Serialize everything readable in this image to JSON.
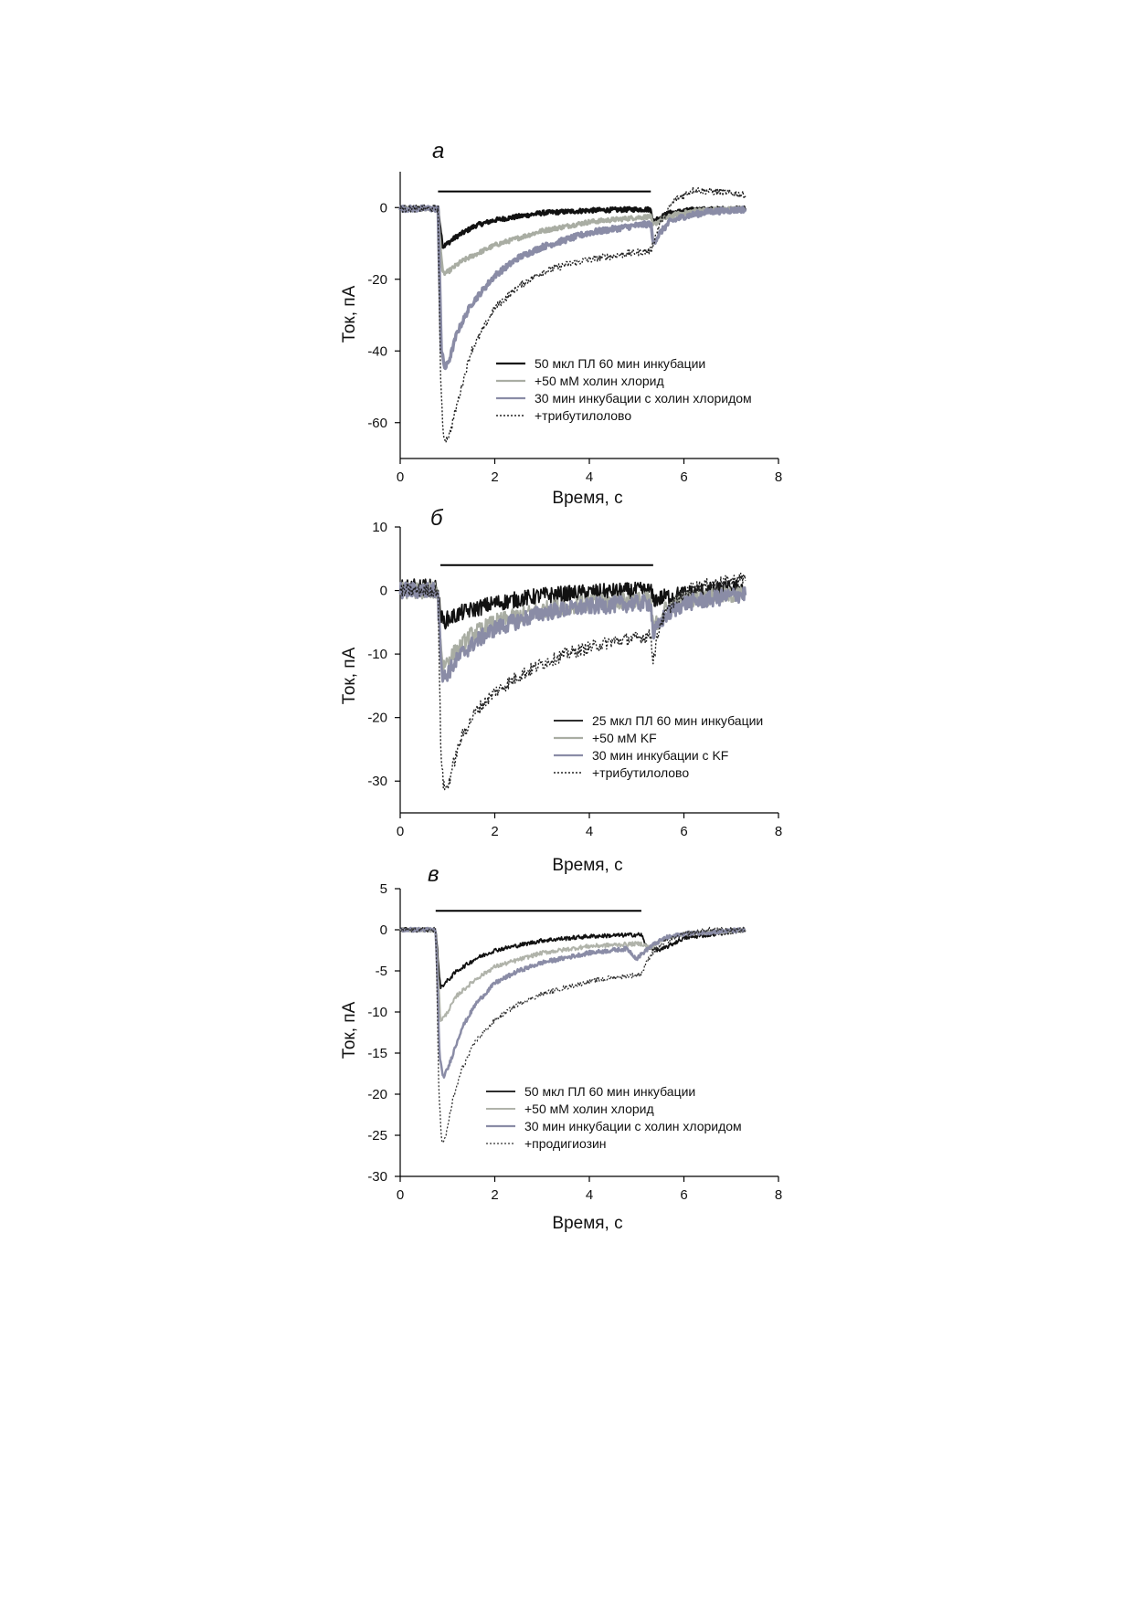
{
  "figure": {
    "panels": [
      {
        "label": "а",
        "xlabel": "Время, с",
        "ylabel": "Ток, пА"
      },
      {
        "label": "б",
        "xlabel": "Время, с",
        "ylabel": "Ток, пА"
      },
      {
        "label": "в",
        "xlabel": "Время, с",
        "ylabel": "Ток, пА"
      }
    ]
  },
  "chart_data": [
    {
      "type": "line",
      "panel": "а",
      "xlabel": "Время, с",
      "ylabel": "Ток, пА",
      "xlim": [
        0,
        8
      ],
      "ylim": [
        -70,
        10
      ],
      "xticks": [
        0,
        2,
        4,
        6,
        8
      ],
      "yticks": [
        0,
        -20,
        -40,
        -60
      ],
      "stimulus_bar": {
        "x": [
          0.8,
          5.3
        ],
        "y": 4.5
      },
      "legend_position": "lower-right",
      "series": [
        {
          "name": "50 мкл ПЛ 60 мин инкубации",
          "color": "#111111",
          "style": "solid",
          "stroke": 3.0,
          "noise": 0.6,
          "x": [
            0,
            0.8,
            0.82,
            0.9,
            1.0,
            1.2,
            1.6,
            2.0,
            3.0,
            4.0,
            5.0,
            5.3,
            5.34,
            5.45,
            5.7,
            6.2,
            7.3
          ],
          "y": [
            -0.3,
            -0.3,
            -3,
            -11,
            -10,
            -8,
            -5,
            -3.5,
            -1.5,
            -0.8,
            -0.5,
            -0.5,
            -4,
            -3,
            -1.5,
            -0.6,
            -0.3
          ]
        },
        {
          "name": "+50 мМ холин хлорид",
          "color": "#a9ada3",
          "style": "solid",
          "stroke": 3.0,
          "noise": 0.6,
          "x": [
            0,
            0.8,
            0.82,
            0.9,
            1.0,
            1.3,
            1.6,
            2.0,
            3.0,
            4.0,
            5.0,
            5.3,
            5.34,
            5.5,
            5.8,
            6.3,
            7.3
          ],
          "y": [
            -0.3,
            -0.3,
            -6,
            -18.5,
            -18,
            -15,
            -13,
            -10.5,
            -6.5,
            -4,
            -2.8,
            -2.5,
            -5,
            -3.5,
            -2,
            -0.8,
            -0.3
          ]
        },
        {
          "name": "30 мин инкубации с холин хлоридом",
          "color": "#8a8ca6",
          "style": "solid",
          "stroke": 3.5,
          "noise": 0.8,
          "x": [
            0,
            0.8,
            0.82,
            0.87,
            0.95,
            1.05,
            1.2,
            1.5,
            2.0,
            2.5,
            3.0,
            4.0,
            5.0,
            5.3,
            5.35,
            5.5,
            5.7,
            6.0,
            6.5,
            7.3
          ],
          "y": [
            -0.3,
            -0.3,
            -12,
            -40,
            -45,
            -42,
            -35,
            -27,
            -19,
            -14,
            -11,
            -7,
            -5,
            -4.5,
            -10,
            -7,
            -4,
            -2.5,
            -1.2,
            -0.5
          ]
        },
        {
          "name": "+трибутилолово",
          "color": "#222222",
          "style": "dotted",
          "stroke": 1.4,
          "noise": 1.0,
          "x": [
            0,
            0.8,
            0.82,
            0.85,
            0.9,
            0.95,
            1.05,
            1.2,
            1.5,
            2.0,
            2.5,
            3.0,
            3.5,
            4.0,
            4.5,
            5.0,
            5.3,
            5.35,
            5.5,
            5.8,
            6.2,
            6.6,
            7.0,
            7.3
          ],
          "y": [
            -0.3,
            -0.3,
            -20,
            -45,
            -62,
            -65,
            -63,
            -55,
            -40,
            -28,
            -22,
            -18,
            -16,
            -14.5,
            -13.5,
            -12.5,
            -12,
            -10,
            -4,
            2,
            5,
            4.5,
            4,
            3.5
          ]
        }
      ]
    },
    {
      "type": "line",
      "panel": "б",
      "xlabel": "Время, с",
      "ylabel": "Ток, пА",
      "xlim": [
        0,
        8
      ],
      "ylim": [
        -35,
        10
      ],
      "xticks": [
        0,
        2,
        4,
        6,
        8
      ],
      "yticks": [
        10,
        0,
        -10,
        -20,
        -30
      ],
      "stimulus_bar": {
        "x": [
          0.85,
          5.35
        ],
        "y": 4
      },
      "legend_position": "lower-right",
      "series": [
        {
          "name": "25 мкл ПЛ 60 мин инкубации",
          "color": "#111111",
          "style": "solid",
          "stroke": 1.8,
          "noise": 1.3,
          "x": [
            0,
            0.8,
            0.82,
            0.9,
            1.0,
            1.3,
            2.0,
            3.0,
            4.0,
            5.0,
            5.3,
            5.35,
            5.6,
            6.0,
            6.5,
            7.3
          ],
          "y": [
            0.5,
            0.5,
            -2,
            -5,
            -4.5,
            -3.5,
            -2,
            -0.8,
            -0.3,
            0,
            0,
            -1.5,
            -1,
            -0.5,
            0,
            0.5
          ]
        },
        {
          "name": "+50 мМ KF",
          "color": "#a9ada3",
          "style": "solid",
          "stroke": 2.2,
          "noise": 1.3,
          "x": [
            0,
            0.8,
            0.82,
            0.9,
            1.0,
            1.5,
            2.0,
            3.0,
            4.0,
            5.0,
            5.3,
            5.35,
            5.6,
            6.0,
            7.3
          ],
          "y": [
            0,
            0,
            -4,
            -12,
            -11,
            -7,
            -5,
            -3,
            -2,
            -1.5,
            -1.5,
            -6,
            -3,
            -1.5,
            -0.5
          ]
        },
        {
          "name": "30 мин инкубации с KF",
          "color": "#8a8ca6",
          "style": "solid",
          "stroke": 2.8,
          "noise": 1.3,
          "x": [
            0,
            0.8,
            0.82,
            0.9,
            1.0,
            1.3,
            1.6,
            2.0,
            3.0,
            4.0,
            5.0,
            5.3,
            5.35,
            5.6,
            6.0,
            7.3
          ],
          "y": [
            0,
            0,
            -5,
            -14,
            -13,
            -10,
            -8,
            -6,
            -3.5,
            -2.5,
            -2,
            -2,
            -7,
            -4,
            -2,
            -0.5
          ]
        },
        {
          "name": "+трибутилолово",
          "color": "#222222",
          "style": "dotted",
          "stroke": 1.4,
          "noise": 1.0,
          "x": [
            0,
            0.8,
            0.82,
            0.86,
            0.92,
            1.0,
            1.1,
            1.3,
            1.6,
            2.0,
            2.5,
            3.0,
            3.5,
            4.0,
            4.5,
            5.0,
            5.3,
            5.35,
            5.5,
            5.8,
            6.2,
            7.0,
            7.3
          ],
          "y": [
            0,
            0,
            -10,
            -25,
            -31,
            -31,
            -28,
            -23,
            -19,
            -16,
            -13.5,
            -11.5,
            -10,
            -9,
            -8,
            -7.5,
            -7,
            -11,
            -5,
            -1.5,
            0.5,
            1.5,
            2
          ]
        }
      ]
    },
    {
      "type": "line",
      "panel": "в",
      "xlabel": "Время, с",
      "ylabel": "Ток, пА",
      "xlim": [
        0,
        8
      ],
      "ylim": [
        -30,
        5
      ],
      "xticks": [
        0,
        2,
        4,
        6,
        8
      ],
      "yticks": [
        5,
        0,
        -5,
        -10,
        -15,
        -20,
        -25,
        -30
      ],
      "stimulus_bar": {
        "x": [
          0.75,
          5.1
        ],
        "y": 2.3
      },
      "legend_position": "lower-right",
      "series": [
        {
          "name": "50 мкл ПЛ 60 мин инкубации",
          "color": "#111111",
          "style": "solid",
          "stroke": 1.8,
          "noise": 0.25,
          "x": [
            0,
            0.75,
            0.78,
            0.85,
            0.95,
            1.2,
            1.6,
            2.0,
            3.0,
            4.0,
            5.0,
            5.1,
            5.2,
            5.5,
            6.0,
            7.3
          ],
          "y": [
            0,
            0,
            -2,
            -7,
            -6.5,
            -5,
            -3.5,
            -2.5,
            -1.3,
            -0.8,
            -0.6,
            -0.6,
            -2,
            -2.5,
            -1,
            0
          ]
        },
        {
          "name": "+50 мМ холин хлорид",
          "color": "#b0b3aa",
          "style": "solid",
          "stroke": 2.0,
          "noise": 0.25,
          "x": [
            0,
            0.75,
            0.78,
            0.85,
            0.95,
            1.2,
            1.6,
            2.0,
            3.0,
            4.0,
            5.0,
            5.1,
            5.3,
            5.6,
            6.0,
            7.3
          ],
          "y": [
            0,
            0,
            -3,
            -11,
            -10.5,
            -8,
            -6,
            -4.5,
            -2.8,
            -2,
            -1.7,
            -1.7,
            -2.2,
            -1,
            -0.5,
            0
          ]
        },
        {
          "name": "30 мин инкубации с холин хлоридом",
          "color": "#8a8ca6",
          "style": "solid",
          "stroke": 2.5,
          "noise": 0.25,
          "x": [
            0,
            0.75,
            0.78,
            0.83,
            0.9,
            1.0,
            1.3,
            1.6,
            2.0,
            2.5,
            3.0,
            4.0,
            4.8,
            5.0,
            5.3,
            5.6,
            6.0,
            7.3
          ],
          "y": [
            0,
            0,
            -5,
            -15,
            -18,
            -17,
            -12,
            -9,
            -6.5,
            -5,
            -4,
            -2.8,
            -2.3,
            -3.5,
            -2,
            -1,
            -0.5,
            0
          ]
        },
        {
          "name": "+продигиозин",
          "color": "#333333",
          "style": "dotted",
          "stroke": 1.3,
          "noise": 0.3,
          "x": [
            0,
            0.75,
            0.78,
            0.82,
            0.88,
            0.95,
            1.1,
            1.3,
            1.6,
            2.0,
            2.5,
            3.0,
            3.5,
            4.0,
            4.5,
            5.0,
            5.1,
            5.3,
            5.6,
            6.0,
            6.5,
            7.3
          ],
          "y": [
            0,
            0,
            -8,
            -20,
            -26,
            -25.5,
            -21,
            -17,
            -13.5,
            -11,
            -9,
            -7.8,
            -7,
            -6.3,
            -5.8,
            -5.5,
            -5.3,
            -3,
            -1.5,
            -0.5,
            0,
            0
          ]
        }
      ]
    }
  ]
}
